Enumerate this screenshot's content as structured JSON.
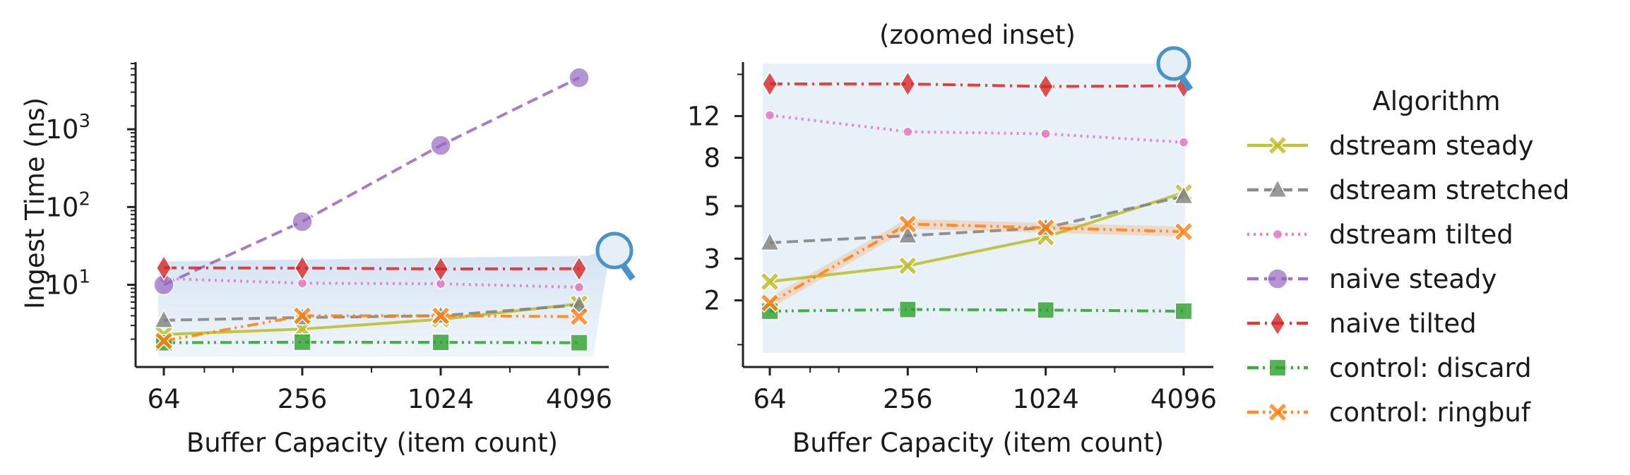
{
  "chart_data": [
    {
      "type": "line",
      "title": "",
      "xlabel": "Buffer Capacity (item count)",
      "ylabel": "Ingest Time (ns)",
      "x_scale": "log2",
      "y_scale": "log10",
      "x": [
        64,
        256,
        1024,
        4096
      ],
      "xticks": [
        "64",
        "256",
        "1024",
        "4096"
      ],
      "yticks": [
        {
          "base": "10",
          "exp": "1",
          "value": 10
        },
        {
          "base": "10",
          "exp": "2",
          "value": 100
        },
        {
          "base": "10",
          "exp": "3",
          "value": 1000
        }
      ],
      "ylim": [
        1.2,
        7000
      ],
      "zoom_region": {
        "x": [
          64,
          4096
        ],
        "y": [
          1.2,
          20
        ]
      },
      "series": [
        {
          "name": "dstream steady",
          "values": [
            2.3,
            2.7,
            3.6,
            5.7
          ]
        },
        {
          "name": "dstream stretched",
          "values": [
            3.5,
            3.8,
            4.0,
            5.5
          ]
        },
        {
          "name": "dstream tilted",
          "values": [
            12,
            10.5,
            10.3,
            9.3
          ]
        },
        {
          "name": "naive steady",
          "values": [
            10,
            65,
            620,
            4600
          ]
        },
        {
          "name": "naive tilted",
          "values": [
            16.5,
            16.4,
            16.0,
            16.1
          ]
        },
        {
          "name": "control: discard",
          "values": [
            1.8,
            1.83,
            1.82,
            1.8
          ]
        },
        {
          "name": "control: ringbuf",
          "values": [
            1.9,
            4.0,
            4.0,
            3.9
          ]
        }
      ]
    },
    {
      "type": "line",
      "title": "(zoomed inset)",
      "xlabel": "Buffer Capacity (item count)",
      "ylabel": "",
      "x_scale": "log2",
      "y_scale": "log",
      "x": [
        64,
        256,
        1024,
        4096
      ],
      "xticks": [
        "64",
        "256",
        "1024",
        "4096"
      ],
      "yticks": [
        "2",
        "3",
        "5",
        "8",
        "12"
      ],
      "ylim": [
        1.2,
        20
      ],
      "series": [
        {
          "name": "dstream steady",
          "values": [
            2.4,
            2.8,
            3.7,
            5.7
          ]
        },
        {
          "name": "dstream stretched",
          "values": [
            3.5,
            3.75,
            4.05,
            5.5
          ]
        },
        {
          "name": "dstream tilted",
          "values": [
            12.1,
            10.3,
            10.1,
            9.3
          ]
        },
        {
          "name": "naive tilted",
          "values": [
            16.4,
            16.4,
            16.0,
            16.1
          ]
        },
        {
          "name": "control: discard",
          "values": [
            1.8,
            1.83,
            1.82,
            1.8
          ]
        },
        {
          "name": "control: ringbuf",
          "values": [
            1.95,
            4.2,
            4.05,
            3.9
          ]
        }
      ]
    }
  ],
  "legend": {
    "title": "Algorithm",
    "placement": "right",
    "entries": [
      {
        "label": "dstream steady",
        "color": "#bcbd22",
        "dash": "solid",
        "marker": "x"
      },
      {
        "label": "dstream stretched",
        "color": "#7f7f7f",
        "dash": "dashed",
        "marker": "triangle"
      },
      {
        "label": "dstream tilted",
        "color": "#e377c2",
        "dash": "dotted",
        "marker": "small-circle"
      },
      {
        "label": "naive steady",
        "color": "#9467bd",
        "dash": "dashed",
        "marker": "circle"
      },
      {
        "label": "naive tilted",
        "color": "#d62728",
        "dash": "dashdot",
        "marker": "diamond"
      },
      {
        "label": "control: discard",
        "color": "#2ca02c",
        "dash": "dashdotdot",
        "marker": "square"
      },
      {
        "label": "control: ringbuf",
        "color": "#ff7f0e",
        "dash": "dashdotdot",
        "marker": "x"
      }
    ]
  },
  "icons": {
    "zoom": "magnifier-icon"
  }
}
